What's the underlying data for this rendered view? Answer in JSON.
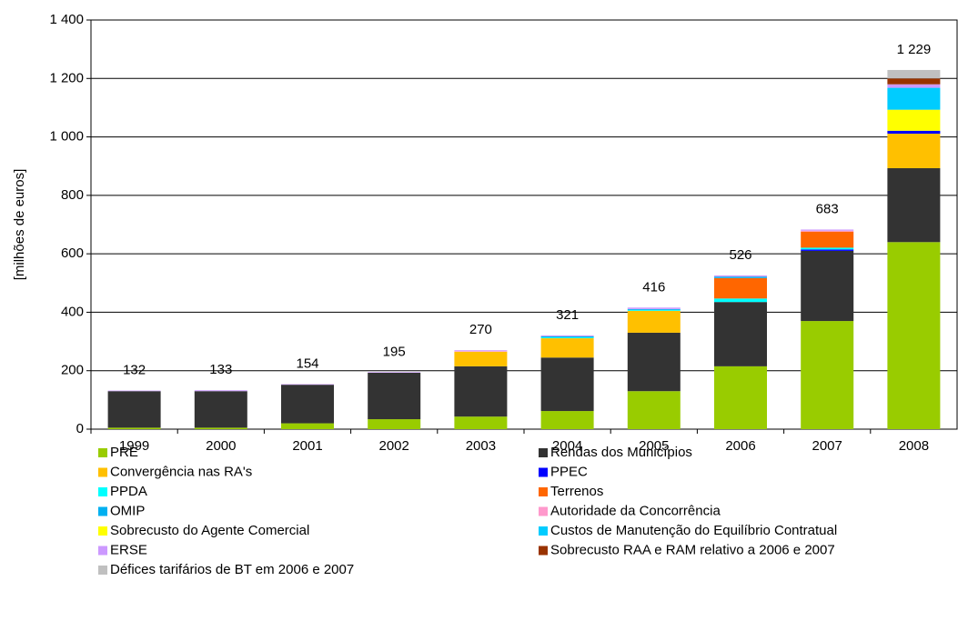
{
  "chart_data": {
    "type": "stacked_bar",
    "y_label": "[milhões de euros]",
    "categories": [
      "1999",
      "2000",
      "2001",
      "2002",
      "2003",
      "2004",
      "2005",
      "2006",
      "2007",
      "2008"
    ],
    "ylim": [
      0,
      1400
    ],
    "yticks": [
      0,
      200,
      400,
      600,
      800,
      {
        "value": 1000,
        "label": "1 000"
      },
      {
        "value": 1200,
        "label": "1 200"
      },
      {
        "value": 1400,
        "label": "1 400"
      }
    ],
    "grid": true,
    "totals": [
      132,
      133,
      154,
      195,
      270,
      321,
      416,
      526,
      683,
      {
        "value": 1229,
        "label": "1 229"
      }
    ],
    "series": [
      {
        "name": "PRE",
        "color": "#99cc00",
        "values": [
          5,
          5,
          20,
          34,
          43,
          62,
          130,
          215,
          370,
          640
        ]
      },
      {
        "name": "Rendas dos Municípios",
        "color": "#333333",
        "values": [
          125,
          125,
          132,
          159,
          172,
          183,
          200,
          220,
          240,
          253
        ]
      },
      {
        "name": "Convergência nas RA's",
        "color": "#ffc000",
        "values": [
          0,
          0,
          0,
          0,
          50,
          66,
          75,
          0,
          0,
          118
        ]
      },
      {
        "name": "PPEC",
        "color": "#0000ff",
        "values": [
          0,
          0,
          0,
          0,
          0,
          0,
          0,
          0,
          5,
          10
        ]
      },
      {
        "name": "PPDA",
        "color": "#00ffff",
        "values": [
          0,
          0,
          0,
          0,
          0,
          3,
          3,
          12,
          6,
          0
        ]
      },
      {
        "name": "Terrenos",
        "color": "#ff6600",
        "values": [
          0,
          0,
          0,
          0,
          0,
          0,
          0,
          70,
          55,
          0
        ]
      },
      {
        "name": "OMIP",
        "color": "#00b0f0",
        "values": [
          0,
          0,
          0,
          0,
          0,
          4,
          3,
          5,
          0,
          0
        ]
      },
      {
        "name": "Autoridade da Concorrência",
        "color": "#ff99cc",
        "values": [
          0,
          0,
          0,
          0,
          2,
          0,
          0,
          0,
          3,
          0
        ]
      },
      {
        "name": "Sobrecusto do Agente Comercial",
        "color": "#ffff00",
        "values": [
          0,
          0,
          0,
          0,
          0,
          0,
          0,
          0,
          0,
          72
        ]
      },
      {
        "name": "Custos de Manutenção do Equilíbrio Contratual",
        "color": "#00ccff",
        "values": [
          0,
          0,
          0,
          0,
          0,
          0,
          0,
          0,
          0,
          75
        ]
      },
      {
        "name": "ERSE",
        "color": "#cc99ff",
        "values": [
          2,
          3,
          2,
          2,
          3,
          3,
          5,
          4,
          4,
          12
        ]
      },
      {
        "name": "Sobrecusto RAA e RAM relativo a 2006 e 2007",
        "color": "#993300",
        "values": [
          0,
          0,
          0,
          0,
          0,
          0,
          0,
          0,
          0,
          20
        ]
      },
      {
        "name": "Défices tarifários de BT em 2006 e 2007",
        "color": "#c0c0c0",
        "values": [
          0,
          0,
          0,
          0,
          0,
          0,
          0,
          0,
          0,
          29
        ]
      }
    ]
  }
}
